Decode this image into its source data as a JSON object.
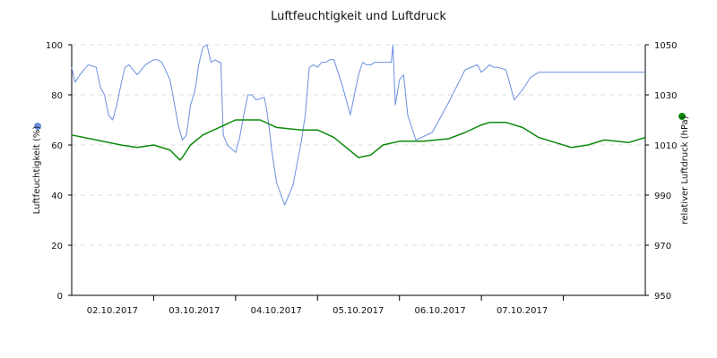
{
  "chart_data": {
    "type": "line",
    "title": "Luftfeuchtigkeit und Luftdruck",
    "ylabel_left": "Luftfeuchtigkeit (%)",
    "ylabel_right": "relativer Luftdruck (hPa)",
    "ylim_left": [
      0,
      100
    ],
    "ylim_right": [
      950,
      1050
    ],
    "yticks_left": [
      0,
      20,
      40,
      60,
      80,
      100
    ],
    "yticks_right": [
      950,
      970,
      990,
      1010,
      1030,
      1050
    ],
    "xlim": [
      0,
      7
    ],
    "x_unit": "days from 01.10.2017 00:00",
    "xticks": [
      1,
      2,
      3,
      4,
      5,
      6
    ],
    "xtick_labels": [
      "02.10.2017",
      "03.10.2017",
      "04.10.2017",
      "05.10.2017",
      "06.10.2017",
      "07.10.2017"
    ],
    "grid": true,
    "series": [
      {
        "name": "Luftfeuchtigkeit",
        "axis": "left",
        "color": "#6b8fdf",
        "x": [
          0.0,
          0.04,
          0.1,
          0.2,
          0.3,
          0.35,
          0.4,
          0.45,
          0.5,
          0.55,
          0.6,
          0.65,
          0.7,
          0.8,
          0.9,
          0.95,
          1.0,
          1.05,
          1.1,
          1.2,
          1.3,
          1.35,
          1.4,
          1.45,
          1.5,
          1.52,
          1.55,
          1.6,
          1.65,
          1.7,
          1.75,
          1.8,
          1.82,
          1.85,
          1.9,
          2.0,
          2.05,
          2.1,
          2.15,
          2.2,
          2.25,
          2.35,
          2.38,
          2.42,
          2.44,
          2.5,
          2.6,
          2.7,
          2.8,
          2.85,
          2.9,
          2.95,
          3.0,
          3.05,
          3.1,
          3.15,
          3.2,
          3.3,
          3.4,
          3.45,
          3.5,
          3.55,
          3.6,
          3.65,
          3.7,
          3.75,
          3.8,
          3.85,
          3.9,
          3.92,
          3.95,
          4.0,
          4.05,
          4.1,
          4.2,
          4.4,
          4.6,
          4.8,
          4.95,
          5.0,
          5.1,
          5.15,
          5.2,
          5.3,
          5.4,
          5.5,
          5.6,
          5.7,
          5.8,
          5.85,
          5.88,
          5.9,
          6.0,
          6.1,
          6.2,
          6.3,
          6.4,
          6.5,
          6.6,
          6.7,
          6.8,
          6.9,
          7.0
        ],
        "values": [
          91,
          85,
          88,
          92,
          91,
          83,
          80,
          72,
          70,
          76,
          84,
          91,
          92,
          88,
          92,
          93,
          94,
          94,
          93,
          86,
          68,
          62,
          64,
          76,
          81,
          85,
          92,
          99,
          100,
          93,
          94,
          93,
          93,
          64,
          60,
          57,
          63,
          72,
          80,
          80,
          78,
          79,
          74,
          64,
          58,
          45,
          36,
          44,
          61,
          72,
          91,
          92,
          91,
          93,
          93,
          94,
          94,
          84,
          72,
          80,
          88,
          93,
          92,
          92,
          93,
          93,
          93,
          93,
          93,
          100,
          76,
          86,
          88,
          72,
          62,
          65,
          77,
          90,
          92,
          89,
          92,
          91,
          91,
          90,
          78,
          82,
          87,
          89,
          89,
          89,
          89,
          89,
          89,
          89,
          89,
          89,
          89,
          89,
          89,
          89,
          89,
          89,
          89
        ]
      },
      {
        "name": "Luftdruck",
        "axis": "right",
        "color": "#0a8a0a",
        "x": [
          0.0,
          0.3,
          0.6,
          0.8,
          1.0,
          1.2,
          1.32,
          1.35,
          1.45,
          1.6,
          1.8,
          2.0,
          2.3,
          2.5,
          2.8,
          3.0,
          3.2,
          3.35,
          3.5,
          3.65,
          3.8,
          4.0,
          4.3,
          4.6,
          4.8,
          5.0,
          5.1,
          5.3,
          5.5,
          5.7,
          5.9,
          6.1,
          6.3,
          6.5,
          6.8,
          7.0
        ],
        "values": [
          1014,
          1012,
          1010,
          1009,
          1010,
          1008,
          1004,
          1005,
          1010,
          1014,
          1017,
          1020,
          1020,
          1017,
          1016,
          1016,
          1013,
          1009,
          1005,
          1006,
          1010,
          1011.5,
          1011.5,
          1012.5,
          1015,
          1018,
          1019,
          1019,
          1017,
          1013,
          1011,
          1009,
          1010,
          1012,
          1011,
          1013
        ]
      }
    ]
  }
}
